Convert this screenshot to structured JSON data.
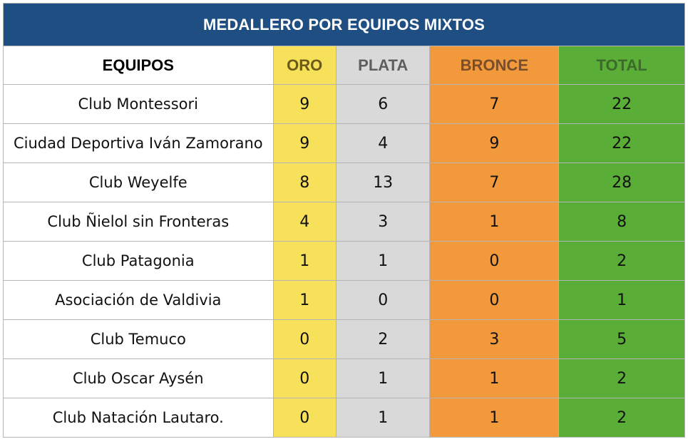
{
  "title": "MEDALLERO POR EQUIPOS MIXTOS",
  "headers": {
    "team": "EQUIPOS",
    "oro": "ORO",
    "plata": "PLATA",
    "bronce": "BRONCE",
    "total": "TOTAL"
  },
  "colors": {
    "title_bg": "#1f4e82",
    "oro": "#f7e15a",
    "plata": "#d9d9d9",
    "bronce": "#f29a3b",
    "total": "#5aad36"
  },
  "rows": [
    {
      "team": "Club Montessori",
      "oro": "9",
      "plata": "6",
      "bronce": "7",
      "total": "22"
    },
    {
      "team": "Ciudad Deportiva Iván Zamorano",
      "oro": "9",
      "plata": "4",
      "bronce": "9",
      "total": "22"
    },
    {
      "team": "Club Weyelfe",
      "oro": "8",
      "plata": "13",
      "bronce": "7",
      "total": "28"
    },
    {
      "team": "Club Ñielol sin Fronteras",
      "oro": "4",
      "plata": "3",
      "bronce": "1",
      "total": "8"
    },
    {
      "team": "Club Patagonia",
      "oro": "1",
      "plata": "1",
      "bronce": "0",
      "total": "2"
    },
    {
      "team": "Asociación de Valdivia",
      "oro": "1",
      "plata": "0",
      "bronce": "0",
      "total": "1"
    },
    {
      "team": "Club Temuco",
      "oro": "0",
      "plata": "2",
      "bronce": "3",
      "total": "5"
    },
    {
      "team": "Club Oscar Aysén",
      "oro": "0",
      "plata": "1",
      "bronce": "1",
      "total": "2"
    },
    {
      "team": "Club Natación Lautaro.",
      "oro": "0",
      "plata": "1",
      "bronce": "1",
      "total": "2"
    }
  ]
}
